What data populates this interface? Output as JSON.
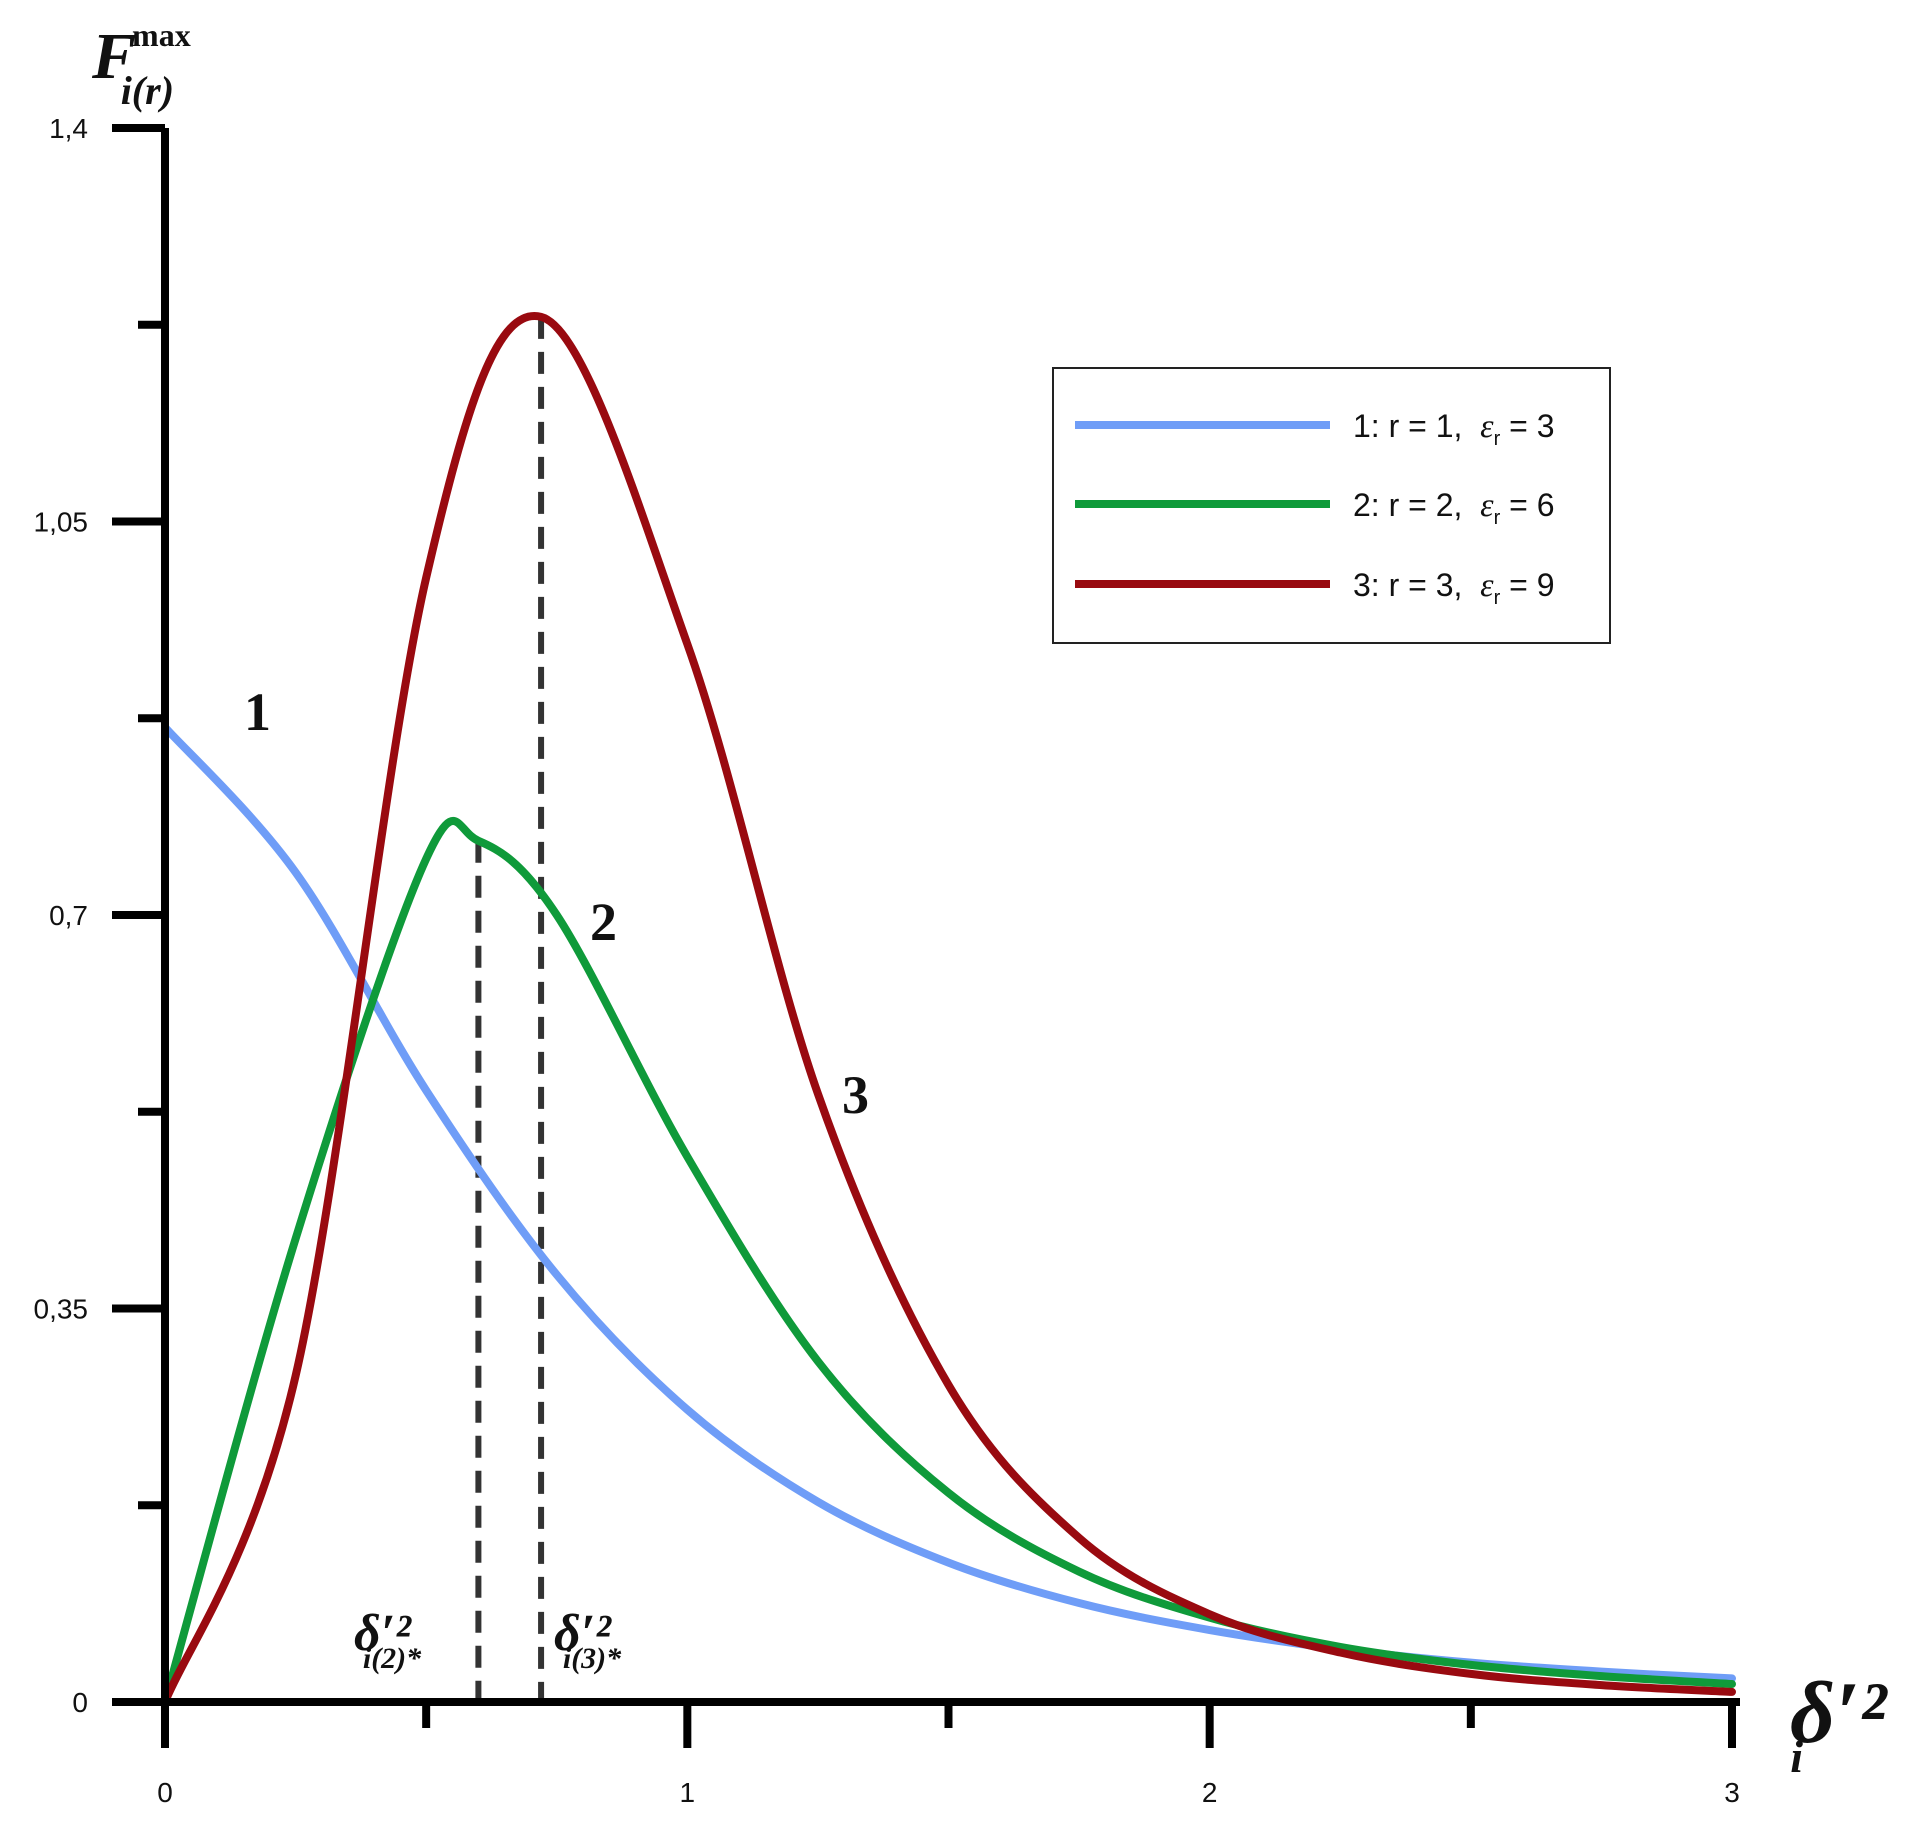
{
  "chart_data": {
    "type": "line",
    "x_axis": {
      "label": "δ′²",
      "label_subscript": "i",
      "range": [
        0,
        3
      ],
      "major_ticks": [
        0,
        1,
        2,
        3
      ],
      "minor_ticks": [
        0.5,
        1.5,
        2.5
      ],
      "tick_labels": [
        "0",
        "1",
        "2",
        "3"
      ]
    },
    "y_axis": {
      "label": "F",
      "label_superscript": "max",
      "label_subscript": "i(r)",
      "range": [
        0,
        1.4
      ],
      "major_ticks": [
        0,
        0.35,
        0.7,
        1.05,
        1.4
      ],
      "minor_ticks": [
        0.175,
        0.525,
        0.875,
        1.225
      ],
      "tick_labels": [
        "0",
        "0,35",
        "0,7",
        "1,05",
        "1,4"
      ]
    },
    "grid": false,
    "legend_position": "top-right",
    "series": [
      {
        "id": "1",
        "legend_prefix": "1: r = 1,  ",
        "epsilon_symbol": "ε",
        "epsilon_subscript": "r",
        "legend_suffix": " = 3",
        "curve_label": "1",
        "color": "#6f9df7",
        "r": 1,
        "eps": 3,
        "x": [
          0,
          0.25,
          0.5,
          0.75,
          1,
          1.25,
          1.5,
          1.75,
          2,
          2.25,
          2.5,
          2.75,
          3
        ],
        "y": [
          0.867,
          0.738,
          0.544,
          0.38,
          0.26,
          0.178,
          0.124,
          0.088,
          0.064,
          0.047,
          0.035,
          0.027,
          0.021
        ]
      },
      {
        "id": "2",
        "legend_prefix": "2: r = 2,  ",
        "epsilon_symbol": "ε",
        "epsilon_subscript": "r",
        "legend_suffix": " = 6",
        "curve_label": "2",
        "color": "#0f9a3a",
        "r": 2,
        "eps": 6,
        "x": [
          0,
          0.25,
          0.5,
          0.6,
          0.75,
          1,
          1.25,
          1.5,
          1.75,
          2,
          2.25,
          2.5,
          2.75,
          3
        ],
        "y": [
          0,
          0.412,
          0.75,
          0.766,
          0.7,
          0.485,
          0.303,
          0.186,
          0.116,
          0.075,
          0.049,
          0.033,
          0.023,
          0.016
        ]
      },
      {
        "id": "3",
        "legend_prefix": "3: r = 3,  ",
        "epsilon_symbol": "ε",
        "epsilon_subscript": "r",
        "legend_suffix": " = 9",
        "curve_label": "3",
        "color": "#990a10",
        "r": 3,
        "eps": 9,
        "x": [
          0,
          0.25,
          0.5,
          0.72,
          1,
          1.25,
          1.5,
          1.75,
          2,
          2.25,
          2.5,
          2.75,
          3
        ],
        "y": [
          0,
          0.29,
          1.0,
          1.232,
          0.941,
          0.541,
          0.282,
          0.146,
          0.078,
          0.044,
          0.025,
          0.015,
          0.009
        ]
      }
    ],
    "markers": [
      {
        "x": 0.6,
        "y": 0.766,
        "label": "δ′²",
        "label_subscript": "i(2)*",
        "series": "2"
      },
      {
        "x": 0.72,
        "y": 1.232,
        "label": "δ′²",
        "label_subscript": "i(3)*",
        "series": "3"
      }
    ]
  }
}
